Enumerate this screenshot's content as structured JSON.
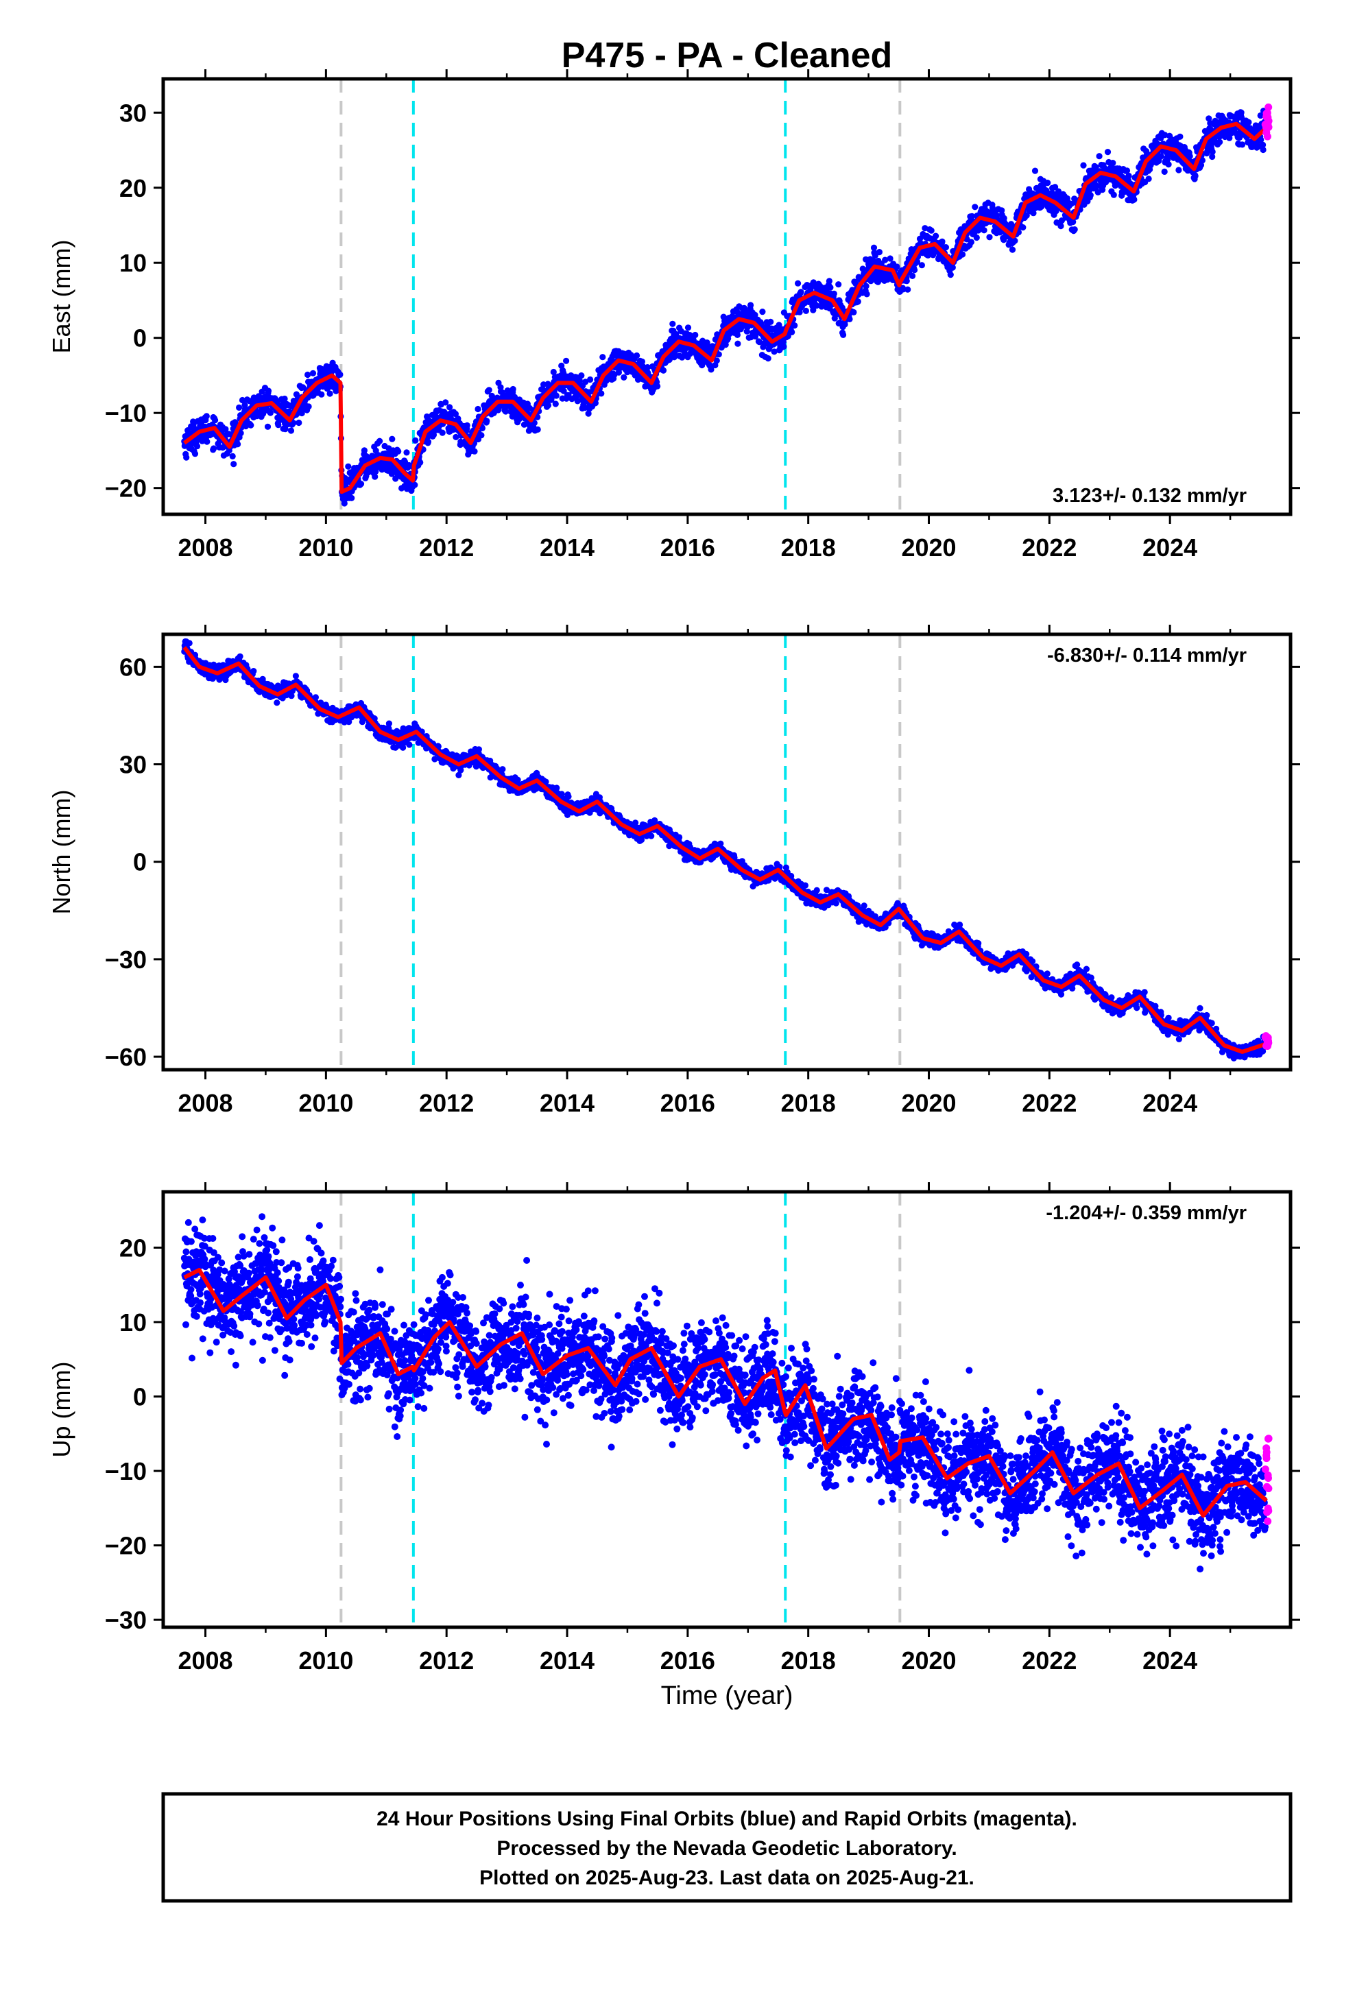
{
  "figure": {
    "title": "P475  - PA - Cleaned",
    "xlabel": "Time (year)",
    "footer": [
      "24 Hour Positions Using Final Orbits (blue) and Rapid Orbits (magenta).",
      "Processed by the Nevada Geodetic Laboratory.",
      "Plotted on 2025-Aug-23. Last data on 2025-Aug-21."
    ]
  },
  "colors": {
    "final_points": "#0000ff",
    "rapid_points": "#ff00ff",
    "model": "#ff0000",
    "gray_event": "#c8c8c8",
    "cyan_event": "#00e5ee"
  },
  "chart_data": [
    {
      "type": "scatter",
      "panel": "east",
      "ylabel": "East (mm)",
      "rate_label": "3.123+/- 0.132 mm/yr",
      "xlim": [
        2007.3,
        2026.0
      ],
      "ylim": [
        -23.5,
        34.5
      ],
      "xticks": [
        2008,
        2010,
        2012,
        2014,
        2016,
        2018,
        2020,
        2022,
        2024
      ],
      "yticks": [
        -20,
        -10,
        0,
        10,
        20,
        30
      ],
      "gray_events": [
        2010.25,
        2019.52
      ],
      "cyan_events": [
        2011.45,
        2017.62
      ],
      "series": [
        {
          "name": "Final Orbits (blue)",
          "role": "final_points",
          "x_range": [
            2007.65,
            2025.58
          ]
        },
        {
          "name": "Rapid Orbits (magenta)",
          "role": "rapid_points",
          "x_range": [
            2025.58,
            2025.64
          ]
        },
        {
          "role": "model",
          "x": [
            2007.65,
            2007.9,
            2008.15,
            2008.4,
            2008.6,
            2008.85,
            2009.1,
            2009.4,
            2009.6,
            2009.85,
            2010.1,
            2010.24,
            2010.26,
            2010.4,
            2010.65,
            2010.9,
            2011.1,
            2011.3,
            2011.44,
            2011.46,
            2011.65,
            2011.9,
            2012.15,
            2012.4,
            2012.6,
            2012.85,
            2013.1,
            2013.4,
            2013.6,
            2013.85,
            2014.1,
            2014.4,
            2014.6,
            2014.85,
            2015.1,
            2015.4,
            2015.6,
            2015.85,
            2016.1,
            2016.4,
            2016.6,
            2016.85,
            2017.1,
            2017.4,
            2017.61,
            2017.63,
            2017.85,
            2018.1,
            2018.4,
            2018.6,
            2018.85,
            2019.1,
            2019.4,
            2019.51,
            2019.53,
            2019.85,
            2020.1,
            2020.4,
            2020.6,
            2020.85,
            2021.1,
            2021.4,
            2021.6,
            2021.85,
            2022.1,
            2022.4,
            2022.6,
            2022.85,
            2023.1,
            2023.4,
            2023.6,
            2023.85,
            2024.1,
            2024.4,
            2024.6,
            2024.85,
            2025.1,
            2025.4,
            2025.6
          ],
          "y": [
            -14,
            -12.5,
            -12,
            -14.5,
            -11,
            -9,
            -8.7,
            -11,
            -8,
            -6,
            -5,
            -6,
            -20.5,
            -20,
            -17,
            -16,
            -16.2,
            -18,
            -19,
            -17,
            -12.5,
            -11,
            -11.5,
            -14,
            -10.5,
            -8.5,
            -8.5,
            -11,
            -8,
            -6,
            -6,
            -8.5,
            -5,
            -3,
            -3.5,
            -6,
            -2.5,
            -0.5,
            -1,
            -3,
            1,
            2.5,
            2,
            -0.5,
            0.5,
            1,
            5,
            6,
            5,
            2.5,
            7,
            9.5,
            9,
            7,
            7.5,
            12,
            12.5,
            10,
            14,
            16,
            15.5,
            13.5,
            18,
            19,
            18,
            16,
            20.5,
            22,
            21.5,
            19.5,
            23.5,
            25.5,
            25,
            22.5,
            26.5,
            28,
            28.5,
            26.5,
            28
          ]
        }
      ]
    },
    {
      "type": "scatter",
      "panel": "north",
      "ylabel": "North (mm)",
      "rate_label": "-6.830+/- 0.114 mm/yr",
      "xlim": [
        2007.3,
        2026.0
      ],
      "ylim": [
        -64,
        70
      ],
      "xticks": [
        2008,
        2010,
        2012,
        2014,
        2016,
        2018,
        2020,
        2022,
        2024
      ],
      "yticks": [
        -60,
        -30,
        0,
        30,
        60
      ],
      "gray_events": [
        2010.25,
        2019.52
      ],
      "cyan_events": [
        2011.45,
        2017.62
      ],
      "series": [
        {
          "name": "Final Orbits (blue)",
          "role": "final_points",
          "x_range": [
            2007.65,
            2025.58
          ]
        },
        {
          "name": "Rapid Orbits (magenta)",
          "role": "rapid_points",
          "x_range": [
            2025.58,
            2025.64
          ]
        },
        {
          "role": "model",
          "x": [
            2007.65,
            2007.9,
            2008.2,
            2008.55,
            2008.9,
            2009.2,
            2009.5,
            2009.9,
            2010.2,
            2010.55,
            2010.9,
            2011.2,
            2011.5,
            2011.9,
            2012.2,
            2012.5,
            2012.9,
            2013.2,
            2013.5,
            2013.9,
            2014.2,
            2014.5,
            2014.9,
            2015.2,
            2015.5,
            2015.9,
            2016.2,
            2016.5,
            2016.9,
            2017.2,
            2017.5,
            2017.9,
            2018.2,
            2018.5,
            2018.9,
            2019.2,
            2019.5,
            2019.9,
            2020.2,
            2020.5,
            2020.9,
            2021.2,
            2021.5,
            2021.9,
            2022.2,
            2022.5,
            2022.9,
            2023.2,
            2023.5,
            2023.9,
            2024.2,
            2024.5,
            2024.9,
            2025.2,
            2025.6
          ],
          "y": [
            66,
            60,
            58,
            61,
            54,
            51.5,
            54.5,
            47,
            44.5,
            47.5,
            40,
            37.5,
            40,
            33,
            30,
            32.5,
            26,
            22.5,
            25,
            18.5,
            15.5,
            18.5,
            11.5,
            8.5,
            11,
            4.5,
            1,
            4,
            -2.5,
            -5.5,
            -2.5,
            -9.5,
            -12.5,
            -10,
            -16.5,
            -19.5,
            -14.5,
            -23.5,
            -25,
            -21.5,
            -29.5,
            -32,
            -28.5,
            -36.5,
            -38.5,
            -35,
            -42.5,
            -45,
            -41.5,
            -50,
            -52,
            -48,
            -56.5,
            -58.5,
            -56
          ]
        }
      ]
    },
    {
      "type": "scatter",
      "panel": "up",
      "ylabel": "Up (mm)",
      "rate_label": "-1.204+/- 0.359 mm/yr",
      "xlim": [
        2007.3,
        2026.0
      ],
      "ylim": [
        -31,
        27.5
      ],
      "xticks": [
        2008,
        2010,
        2012,
        2014,
        2016,
        2018,
        2020,
        2022,
        2024
      ],
      "yticks": [
        -30,
        -20,
        -10,
        0,
        10,
        20
      ],
      "gray_events": [
        2010.25,
        2019.52
      ],
      "cyan_events": [
        2011.45,
        2017.62
      ],
      "series": [
        {
          "name": "Final Orbits (blue)",
          "role": "final_points",
          "x_range": [
            2007.65,
            2025.58
          ]
        },
        {
          "name": "Rapid Orbits (magenta)",
          "role": "rapid_points",
          "x_range": [
            2025.58,
            2025.64
          ]
        },
        {
          "role": "model",
          "x": [
            2007.65,
            2007.9,
            2008.3,
            2008.6,
            2009.0,
            2009.35,
            2009.65,
            2010.0,
            2010.24,
            2010.26,
            2010.5,
            2010.9,
            2011.2,
            2011.44,
            2011.46,
            2011.8,
            2012.05,
            2012.5,
            2012.9,
            2013.25,
            2013.6,
            2014.0,
            2014.35,
            2014.8,
            2015.05,
            2015.4,
            2015.85,
            2016.2,
            2016.55,
            2016.95,
            2017.25,
            2017.45,
            2017.61,
            2017.63,
            2017.95,
            2018.3,
            2018.75,
            2019.05,
            2019.35,
            2019.51,
            2019.53,
            2019.9,
            2020.3,
            2020.65,
            2021.0,
            2021.35,
            2021.75,
            2022.05,
            2022.4,
            2022.8,
            2023.15,
            2023.5,
            2023.9,
            2024.2,
            2024.55,
            2024.95,
            2025.25,
            2025.6
          ],
          "y": [
            16,
            17,
            11.5,
            13.5,
            16,
            10.5,
            13,
            15,
            10,
            4.5,
            6.5,
            8.5,
            3,
            4,
            3.5,
            8,
            10,
            4,
            7,
            8.5,
            3,
            5.5,
            6.5,
            1.5,
            5,
            6.5,
            0,
            4,
            5,
            -1,
            2.5,
            3.5,
            -2,
            -2.5,
            1.5,
            -7,
            -3,
            -2.5,
            -8.5,
            -7.5,
            -6,
            -5.5,
            -11,
            -9,
            -8,
            -13,
            -10,
            -7.5,
            -13,
            -10.5,
            -9,
            -15,
            -12.5,
            -10.5,
            -16,
            -12,
            -11.5,
            -14
          ]
        }
      ]
    }
  ]
}
